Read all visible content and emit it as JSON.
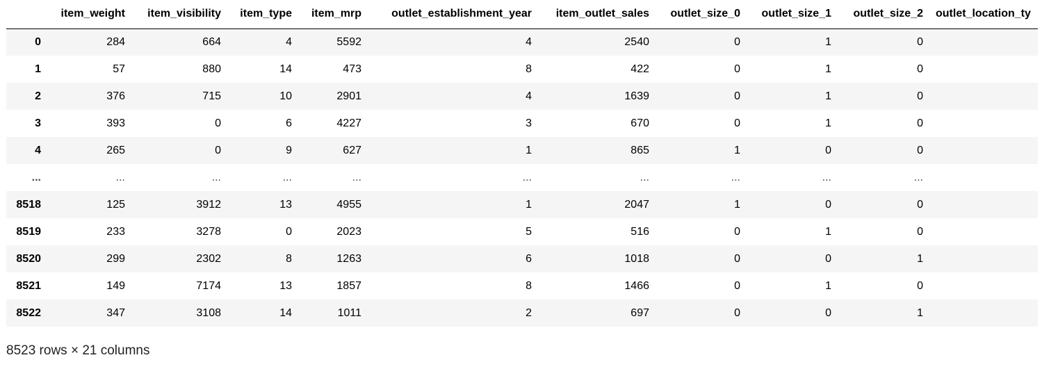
{
  "table": {
    "index_header": "",
    "columns": [
      "item_weight",
      "item_visibility",
      "item_type",
      "item_mrp",
      "outlet_establishment_year",
      "item_outlet_sales",
      "outlet_size_0",
      "outlet_size_1",
      "outlet_size_2",
      "outlet_location_ty"
    ],
    "rows": [
      {
        "index": "0",
        "cells": [
          "284",
          "664",
          "4",
          "5592",
          "4",
          "2540",
          "0",
          "1",
          "0",
          ""
        ]
      },
      {
        "index": "1",
        "cells": [
          "57",
          "880",
          "14",
          "473",
          "8",
          "422",
          "0",
          "1",
          "0",
          ""
        ]
      },
      {
        "index": "2",
        "cells": [
          "376",
          "715",
          "10",
          "2901",
          "4",
          "1639",
          "0",
          "1",
          "0",
          ""
        ]
      },
      {
        "index": "3",
        "cells": [
          "393",
          "0",
          "6",
          "4227",
          "3",
          "670",
          "0",
          "1",
          "0",
          ""
        ]
      },
      {
        "index": "4",
        "cells": [
          "265",
          "0",
          "9",
          "627",
          "1",
          "865",
          "1",
          "0",
          "0",
          ""
        ]
      },
      {
        "index": "...",
        "cells": [
          "...",
          "...",
          "...",
          "...",
          "...",
          "...",
          "...",
          "...",
          "...",
          ""
        ]
      },
      {
        "index": "8518",
        "cells": [
          "125",
          "3912",
          "13",
          "4955",
          "1",
          "2047",
          "1",
          "0",
          "0",
          ""
        ]
      },
      {
        "index": "8519",
        "cells": [
          "233",
          "3278",
          "0",
          "2023",
          "5",
          "516",
          "0",
          "1",
          "0",
          ""
        ]
      },
      {
        "index": "8520",
        "cells": [
          "299",
          "2302",
          "8",
          "1263",
          "6",
          "1018",
          "0",
          "0",
          "1",
          ""
        ]
      },
      {
        "index": "8521",
        "cells": [
          "149",
          "7174",
          "13",
          "1857",
          "8",
          "1466",
          "0",
          "1",
          "0",
          ""
        ]
      },
      {
        "index": "8522",
        "cells": [
          "347",
          "3108",
          "14",
          "1011",
          "2",
          "697",
          "0",
          "0",
          "1",
          ""
        ]
      }
    ]
  },
  "footer": {
    "shape_text": "8523 rows × 21 columns"
  },
  "colors": {
    "striped_row_background": "#f5f5f5",
    "header_rule": "#000000"
  }
}
